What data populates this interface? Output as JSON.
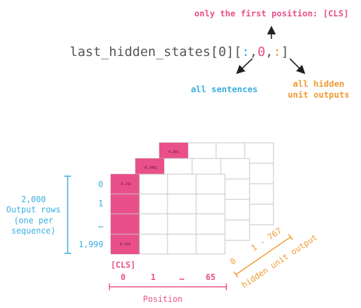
{
  "top_annotation": "only the first position: [CLS]",
  "expression": {
    "prefix": "last_hidden_states[0][",
    "colon1": ":",
    "comma1": ",",
    "zero": "0",
    "comma2": ",",
    "colon2": ":",
    "suffix": "]"
  },
  "label_all_sentences": "all sentences",
  "label_all_hidden": [
    "all hidden",
    "unit outputs"
  ],
  "rows_label": [
    "2,000",
    "Output rows",
    "(one per",
    "sequence)"
  ],
  "row_ticks": [
    "0",
    "1",
    "…",
    "1,999"
  ],
  "cls_label": "[CLS]",
  "position_ticks": [
    "0",
    "1",
    "…",
    "65"
  ],
  "position_label": "Position",
  "hidden_range": {
    "start": "0",
    "end": "1 - 767"
  },
  "hidden_label": "hidden unit output",
  "cell_values": {
    "back": "0.201",
    "middle": "-0.1402",
    "front_top": "-0.215",
    "front_bottom": "0.124"
  },
  "colors": {
    "pink": "#e9508a",
    "blue": "#3aaee0",
    "orange": "#f19a33",
    "grid": "#c4c4c4",
    "text_dark": "#555555"
  }
}
